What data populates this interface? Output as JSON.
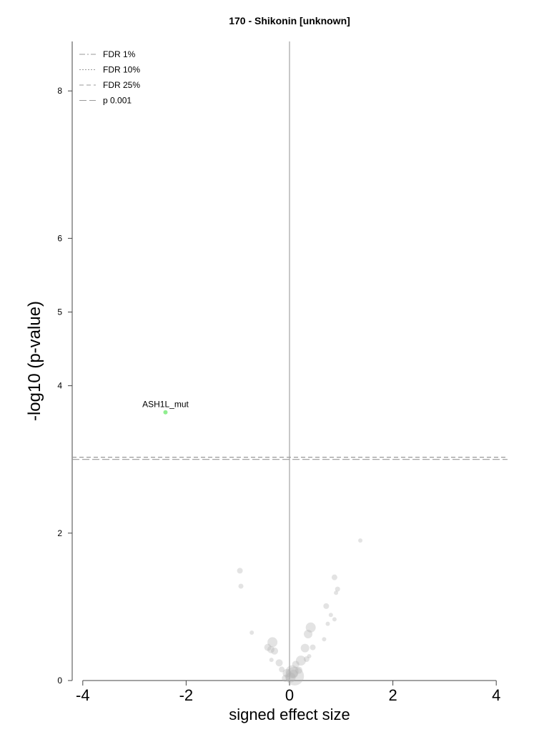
{
  "chart_data": {
    "type": "scatter",
    "title": "170 - Shikonin [unknown]",
    "xlabel": "signed effect size",
    "ylabel": "-log10 (p-value)",
    "xlim": [
      -4.2,
      4.2
    ],
    "ylim": [
      0,
      8.7
    ],
    "xticks": [
      -4,
      -2,
      0,
      2,
      4
    ],
    "xtick_labels": [
      "-4",
      "-2",
      "0",
      "2",
      "4"
    ],
    "yticks": [
      0,
      2,
      4,
      5,
      6,
      8
    ],
    "ytick_labels": [
      "0",
      "2",
      "4",
      "5",
      "6",
      "8"
    ],
    "grid": false,
    "legend_position": "top-left",
    "legend": [
      {
        "label": "FDR 1%",
        "style": "dashdot"
      },
      {
        "label": "FDR 10%",
        "style": "dotted"
      },
      {
        "label": "FDR 25%",
        "style": "dashed"
      },
      {
        "label": "p 0.001",
        "style": "longdash"
      }
    ],
    "threshold_lines": [
      {
        "name": "FDR 25%",
        "y": 3.03
      },
      {
        "name": "p 0.001",
        "y": 3.0
      }
    ],
    "zero_line_x": 0,
    "highlight_color": "#90ee90",
    "point_color": "#b0b0b0",
    "points": [
      {
        "x": -2.4,
        "y": 3.64,
        "size": 3,
        "label": "ASH1L_mut",
        "highlight": true
      },
      {
        "x": 1.37,
        "y": 1.9,
        "size": 3
      },
      {
        "x": -0.96,
        "y": 1.49,
        "size": 4
      },
      {
        "x": -0.94,
        "y": 1.28,
        "size": 3.5
      },
      {
        "x": 0.87,
        "y": 1.4,
        "size": 4
      },
      {
        "x": 0.93,
        "y": 1.24,
        "size": 3.5
      },
      {
        "x": 0.9,
        "y": 1.19,
        "size": 3
      },
      {
        "x": 0.71,
        "y": 1.01,
        "size": 4
      },
      {
        "x": 0.8,
        "y": 0.89,
        "size": 3
      },
      {
        "x": 0.87,
        "y": 0.83,
        "size": 3
      },
      {
        "x": 0.74,
        "y": 0.77,
        "size": 3
      },
      {
        "x": 0.41,
        "y": 0.72,
        "size": 7
      },
      {
        "x": 0.36,
        "y": 0.63,
        "size": 6
      },
      {
        "x": -0.73,
        "y": 0.65,
        "size": 3
      },
      {
        "x": 0.67,
        "y": 0.56,
        "size": 3
      },
      {
        "x": -0.33,
        "y": 0.52,
        "size": 7
      },
      {
        "x": -0.42,
        "y": 0.45,
        "size": 5
      },
      {
        "x": -0.36,
        "y": 0.42,
        "size": 5
      },
      {
        "x": 0.45,
        "y": 0.45,
        "size": 4
      },
      {
        "x": 0.3,
        "y": 0.44,
        "size": 6
      },
      {
        "x": -0.29,
        "y": 0.4,
        "size": 5
      },
      {
        "x": 0.38,
        "y": 0.33,
        "size": 3
      },
      {
        "x": -0.35,
        "y": 0.28,
        "size": 3
      },
      {
        "x": 0.33,
        "y": 0.29,
        "size": 4
      },
      {
        "x": 0.22,
        "y": 0.27,
        "size": 7
      },
      {
        "x": -0.2,
        "y": 0.24,
        "size": 5
      },
      {
        "x": 0.12,
        "y": 0.22,
        "size": 5
      },
      {
        "x": -0.15,
        "y": 0.15,
        "size": 4
      },
      {
        "x": 0.18,
        "y": 0.14,
        "size": 5
      },
      {
        "x": -0.05,
        "y": 0.1,
        "size": 6
      },
      {
        "x": 0.05,
        "y": 0.12,
        "size": 9
      },
      {
        "x": 0.1,
        "y": 0.06,
        "size": 13
      },
      {
        "x": 0.02,
        "y": 0.04,
        "size": 7
      },
      {
        "x": -0.08,
        "y": 0.03,
        "size": 5
      },
      {
        "x": 0.08,
        "y": 0.09,
        "size": 6
      }
    ]
  }
}
